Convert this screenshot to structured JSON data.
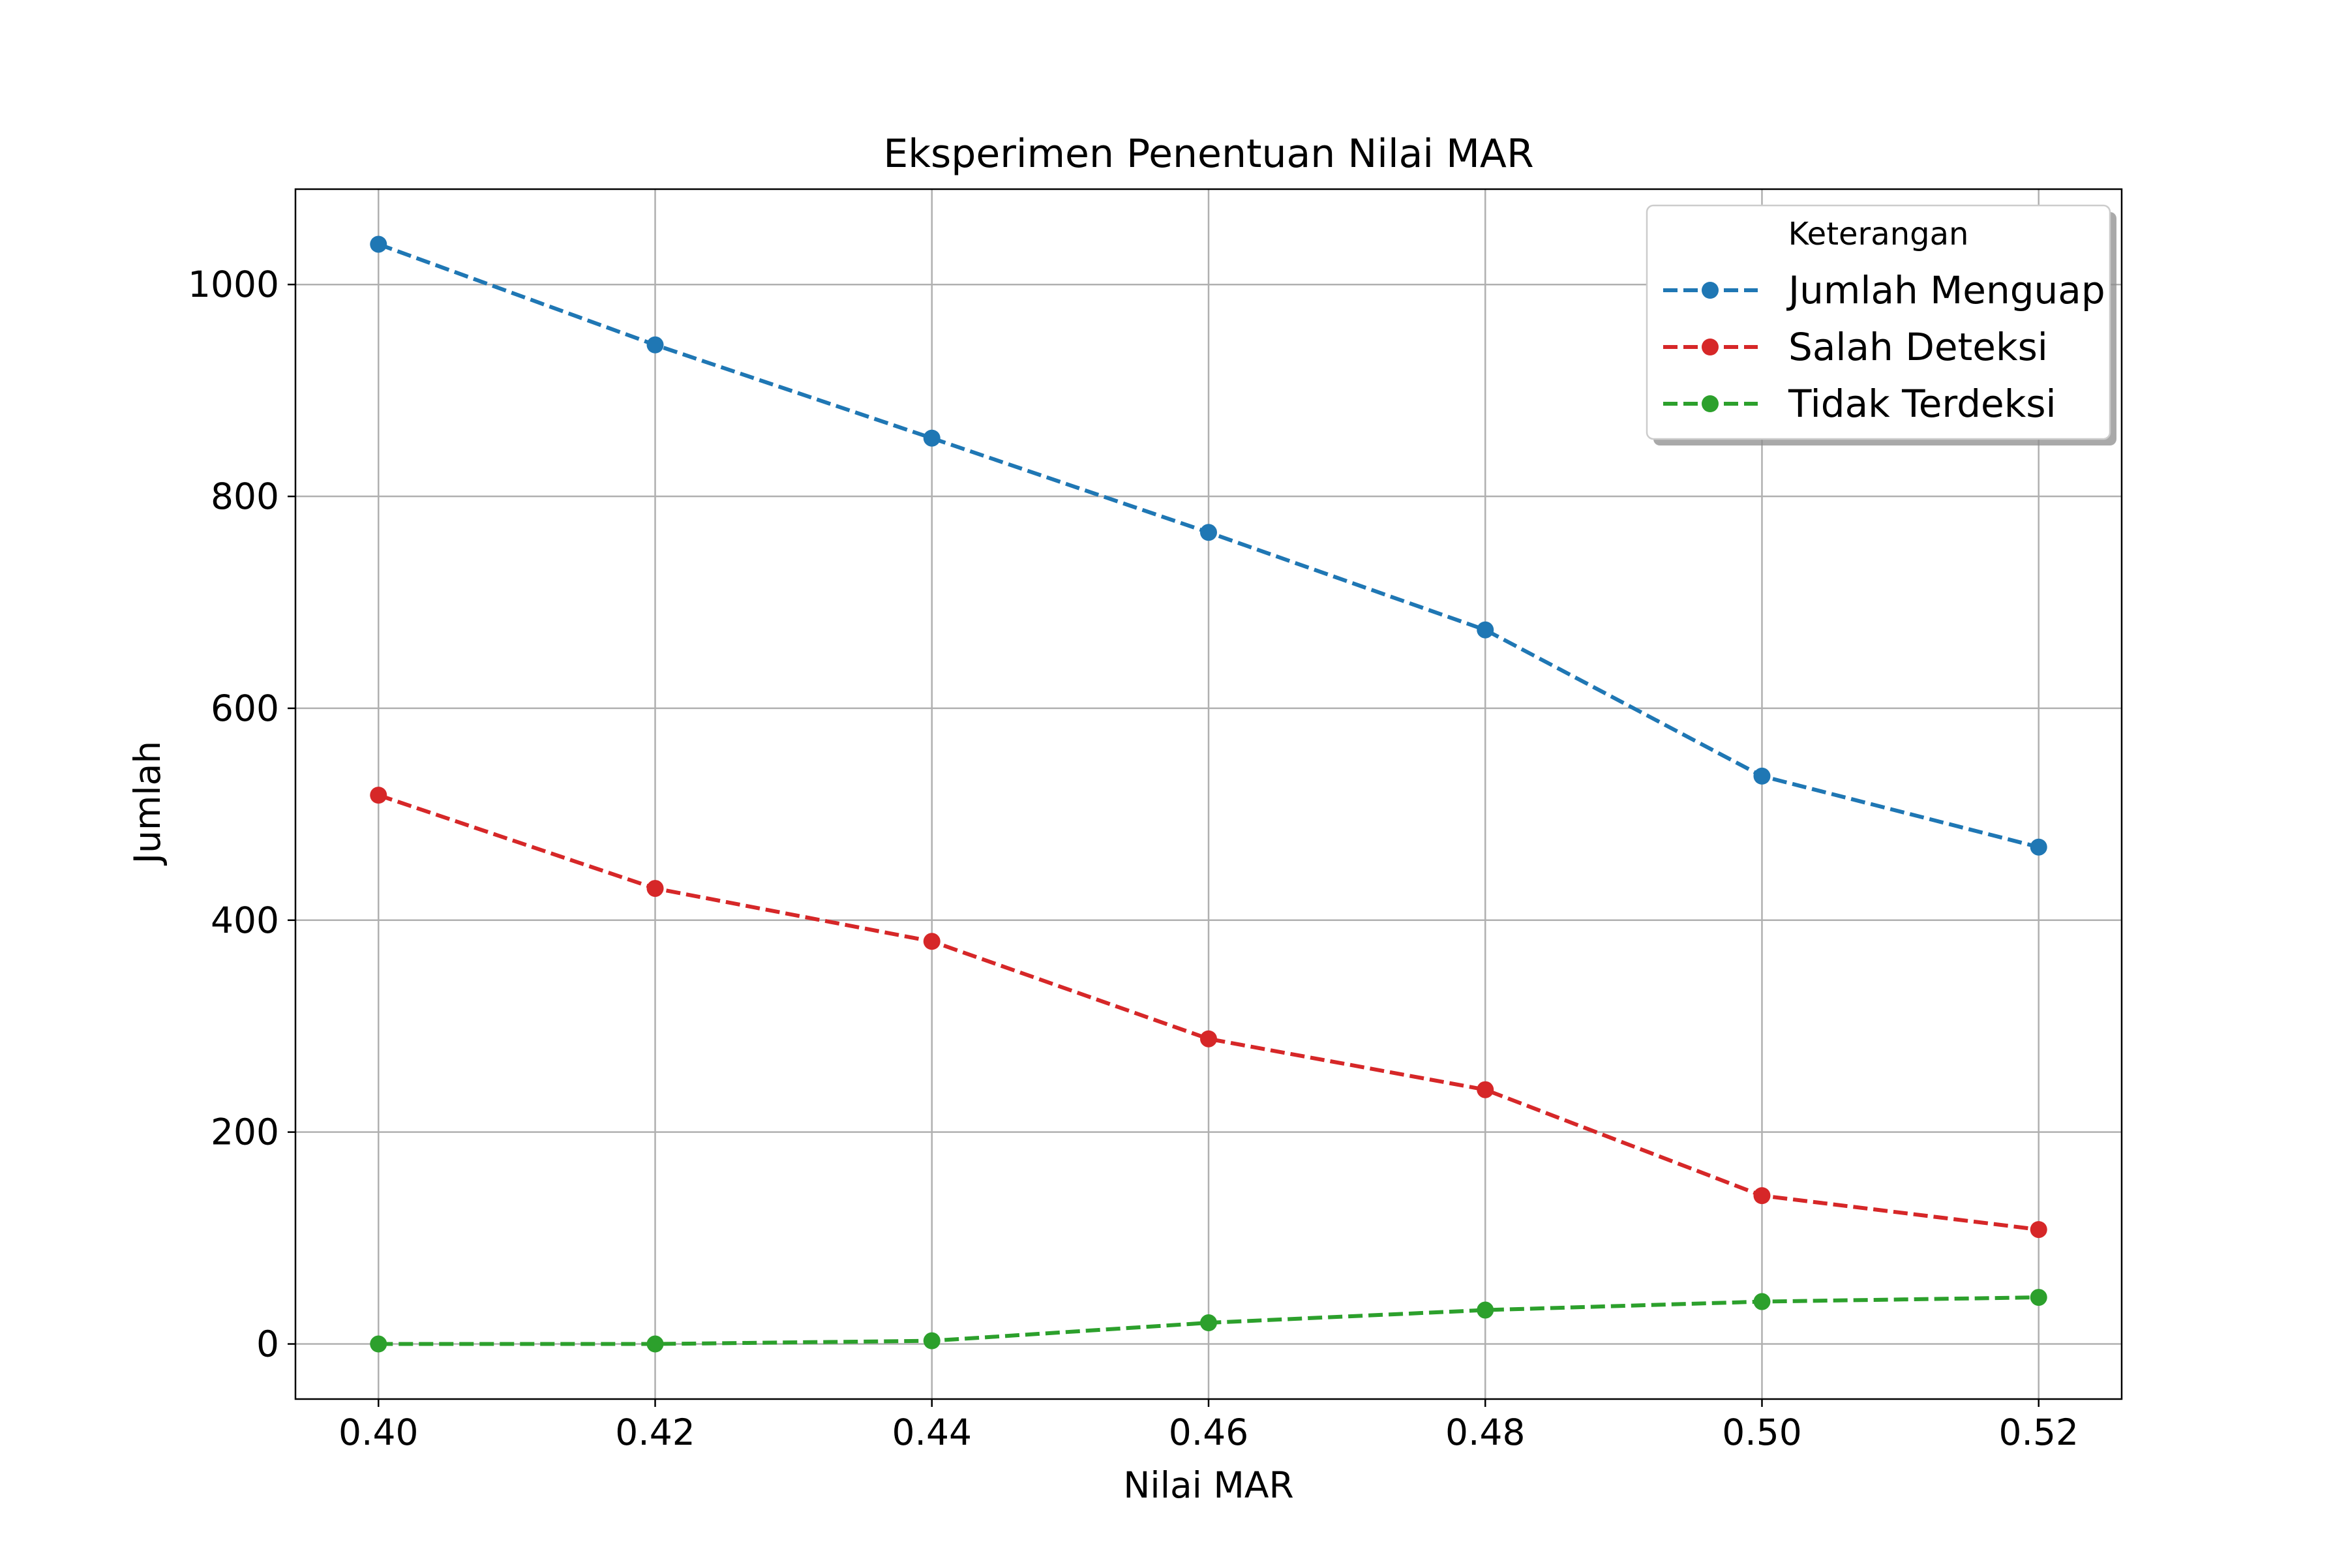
{
  "chart_data": {
    "type": "line",
    "title": "Eksperimen Penentuan Nilai MAR",
    "xlabel": "Nilai MAR",
    "ylabel": "Jumlah",
    "x": [
      0.4,
      0.42,
      0.44,
      0.46,
      0.48,
      0.5,
      0.52
    ],
    "x_tick_labels": [
      "0.40",
      "0.42",
      "0.44",
      "0.46",
      "0.48",
      "0.50",
      "0.52"
    ],
    "y_ticks": [
      0,
      200,
      400,
      600,
      800,
      1000
    ],
    "y_tick_labels": [
      "0",
      "200",
      "400",
      "600",
      "800",
      "1000"
    ],
    "xlim": [
      0.394,
      0.526
    ],
    "ylim": [
      -52,
      1090
    ],
    "grid": true,
    "legend": {
      "title": "Keterangan",
      "placement": "top-right"
    },
    "series": [
      {
        "name": "Jumlah Menguap",
        "color": "#1f77b4",
        "values": [
          1038,
          943,
          855,
          766,
          674,
          536,
          469
        ]
      },
      {
        "name": "Salah Deteksi",
        "color": "#d62728",
        "values": [
          518,
          430,
          380,
          288,
          240,
          140,
          108
        ]
      },
      {
        "name": "Tidak Terdeksi",
        "color": "#2ca02c",
        "values": [
          0,
          0,
          3,
          20,
          32,
          40,
          44
        ]
      }
    ]
  }
}
